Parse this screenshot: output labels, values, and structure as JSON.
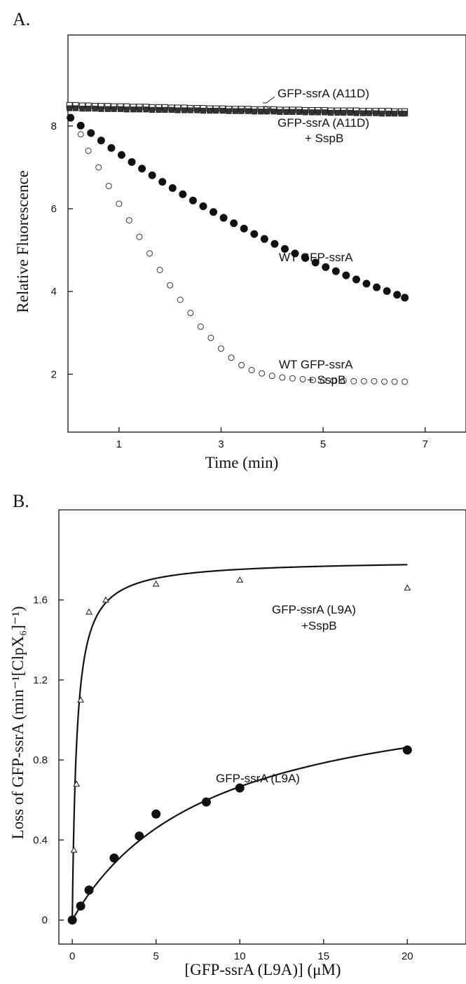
{
  "panels": [
    {
      "letter": "A.",
      "xlabel": "Time (min)",
      "ylabel": "Relative Fluorescence",
      "annotations": [
        "GFP-ssrA (A11D)",
        "GFP-ssrA (A11D)",
        "+ SspB",
        "WT GFP-ssrA",
        "WT GFP-ssrA",
        "+ SspB"
      ]
    },
    {
      "letter": "B.",
      "xlabel": "[GFP-ssrA (L9A)] (μM)",
      "ylabel": "Loss of GFP-ssrA (min⁻¹[ClpX₆]⁻¹)",
      "annotations": [
        "GFP-ssrA (L9A)",
        "+SspB",
        "GFP-ssrA (L9A)"
      ]
    }
  ],
  "chart_data": [
    {
      "type": "scatter",
      "xlabel": "Time (min)",
      "ylabel": "Relative Fluorescence",
      "xlim": [
        0,
        7.8
      ],
      "ylim": [
        0.6,
        10.2
      ],
      "xticks": [
        "1",
        "3",
        "5",
        "7"
      ],
      "yticks": [
        "2",
        "4",
        "6",
        "8"
      ],
      "grid": false,
      "series": [
        {
          "name": "GFP-ssrA (A11D)",
          "marker": "open-square",
          "x": [
            0.03,
            0.15,
            0.28,
            0.4,
            0.53,
            0.65,
            0.78,
            0.9,
            1.03,
            1.15,
            1.28,
            1.4,
            1.53,
            1.65,
            1.78,
            1.9,
            2.03,
            2.15,
            2.28,
            2.4,
            2.53,
            2.65,
            2.78,
            2.9,
            3.03,
            3.15,
            3.28,
            3.4,
            3.53,
            3.65,
            3.78,
            3.9,
            4.03,
            4.15,
            4.28,
            4.4,
            4.53,
            4.65,
            4.78,
            4.9,
            5.03,
            5.15,
            5.28,
            5.4,
            5.53,
            5.65,
            5.78,
            5.9,
            6.03,
            6.15,
            6.28,
            6.4,
            6.53,
            6.6
          ],
          "y": [
            8.5,
            8.5,
            8.49,
            8.49,
            8.48,
            8.48,
            8.48,
            8.47,
            8.47,
            8.47,
            8.46,
            8.46,
            8.46,
            8.45,
            8.45,
            8.45,
            8.44,
            8.44,
            8.44,
            8.43,
            8.43,
            8.43,
            8.42,
            8.42,
            8.42,
            8.41,
            8.41,
            8.41,
            8.41,
            8.4,
            8.4,
            8.4,
            8.4,
            8.39,
            8.39,
            8.39,
            8.39,
            8.38,
            8.38,
            8.38,
            8.38,
            8.37,
            8.37,
            8.37,
            8.37,
            8.37,
            8.36,
            8.36,
            8.36,
            8.36,
            8.36,
            8.35,
            8.35,
            8.35
          ]
        },
        {
          "name": "GFP-ssrA (A11D) + SspB",
          "marker": "filled-square",
          "x": [
            0.03,
            0.15,
            0.28,
            0.4,
            0.53,
            0.65,
            0.78,
            0.9,
            1.03,
            1.15,
            1.28,
            1.4,
            1.53,
            1.65,
            1.78,
            1.9,
            2.03,
            2.15,
            2.28,
            2.4,
            2.53,
            2.65,
            2.78,
            2.9,
            3.03,
            3.15,
            3.28,
            3.4,
            3.53,
            3.65,
            3.78,
            3.9,
            4.03,
            4.15,
            4.28,
            4.4,
            4.53,
            4.65,
            4.78,
            4.9,
            5.03,
            5.15,
            5.28,
            5.4,
            5.53,
            5.65,
            5.78,
            5.9,
            6.03,
            6.15,
            6.28,
            6.4,
            6.53,
            6.6
          ],
          "y": [
            8.43,
            8.43,
            8.42,
            8.42,
            8.42,
            8.41,
            8.41,
            8.41,
            8.41,
            8.4,
            8.4,
            8.4,
            8.4,
            8.39,
            8.39,
            8.39,
            8.39,
            8.38,
            8.38,
            8.38,
            8.38,
            8.37,
            8.37,
            8.37,
            8.37,
            8.36,
            8.36,
            8.36,
            8.36,
            8.35,
            8.35,
            8.35,
            8.35,
            8.34,
            8.34,
            8.34,
            8.34,
            8.33,
            8.33,
            8.33,
            8.33,
            8.32,
            8.32,
            8.32,
            8.32,
            8.31,
            8.31,
            8.31,
            8.31,
            8.3,
            8.3,
            8.3,
            8.3,
            8.3
          ]
        },
        {
          "name": "WT GFP-ssrA",
          "marker": "filled-circle",
          "x": [
            0.05,
            0.25,
            0.45,
            0.65,
            0.85,
            1.05,
            1.25,
            1.45,
            1.65,
            1.85,
            2.05,
            2.25,
            2.45,
            2.65,
            2.85,
            3.05,
            3.25,
            3.45,
            3.65,
            3.85,
            4.05,
            4.25,
            4.45,
            4.65,
            4.85,
            5.05,
            5.25,
            5.45,
            5.65,
            5.85,
            6.05,
            6.25,
            6.45,
            6.6
          ],
          "y": [
            8.2,
            8.01,
            7.83,
            7.65,
            7.47,
            7.3,
            7.13,
            6.97,
            6.81,
            6.65,
            6.5,
            6.35,
            6.2,
            6.06,
            5.92,
            5.78,
            5.65,
            5.52,
            5.39,
            5.27,
            5.15,
            5.03,
            4.92,
            4.81,
            4.7,
            4.59,
            4.49,
            4.39,
            4.29,
            4.19,
            4.1,
            4.01,
            3.92,
            3.85
          ]
        },
        {
          "name": "WT GFP-ssrA + SspB",
          "marker": "open-circle",
          "x": [
            0.25,
            0.4,
            0.6,
            0.8,
            1.0,
            1.2,
            1.4,
            1.6,
            1.8,
            2.0,
            2.2,
            2.4,
            2.6,
            2.8,
            3.0,
            3.2,
            3.4,
            3.6,
            3.8,
            4.0,
            4.2,
            4.4,
            4.6,
            4.8,
            5.0,
            5.2,
            5.4,
            5.6,
            5.8,
            6.0,
            6.2,
            6.4,
            6.6
          ],
          "y": [
            7.8,
            7.4,
            7.0,
            6.55,
            6.12,
            5.72,
            5.32,
            4.92,
            4.52,
            4.15,
            3.8,
            3.48,
            3.15,
            2.88,
            2.62,
            2.4,
            2.22,
            2.1,
            2.02,
            1.96,
            1.92,
            1.9,
            1.88,
            1.86,
            1.85,
            1.84,
            1.84,
            1.83,
            1.83,
            1.83,
            1.82,
            1.82,
            1.82
          ]
        }
      ]
    },
    {
      "type": "scatter",
      "xlabel": "[GFP-ssrA (L9A)] (μM)",
      "ylabel": "Loss of GFP-ssrA (min⁻¹[ClpX₆]⁻¹)",
      "xlim": [
        -0.8,
        23.5
      ],
      "ylim": [
        -0.12,
        2.05
      ],
      "xticks": [
        "0",
        "5",
        "10",
        "15",
        "20"
      ],
      "yticks": [
        "0",
        "0.4",
        "0.8",
        "1.2",
        "1.6"
      ],
      "grid": false,
      "series": [
        {
          "name": "GFP-ssrA (L9A) +SspB",
          "marker": "open-triangle",
          "x": [
            0,
            0.1,
            0.25,
            0.5,
            1,
            2,
            5,
            10,
            20
          ],
          "y": [
            0.0,
            0.35,
            0.68,
            1.1,
            1.54,
            1.6,
            1.68,
            1.7,
            1.66
          ],
          "fit": {
            "model": "hyperbolic",
            "vmax": 1.8,
            "km": 0.27
          }
        },
        {
          "name": "GFP-ssrA (L9A)",
          "marker": "filled-circle",
          "x": [
            0,
            0.5,
            1,
            2.5,
            4,
            5,
            8,
            10,
            20
          ],
          "y": [
            0.0,
            0.07,
            0.15,
            0.31,
            0.42,
            0.53,
            0.59,
            0.66,
            0.85
          ],
          "fit": {
            "model": "hyperbolic",
            "vmax": 1.22,
            "km": 8.3
          }
        }
      ]
    }
  ]
}
